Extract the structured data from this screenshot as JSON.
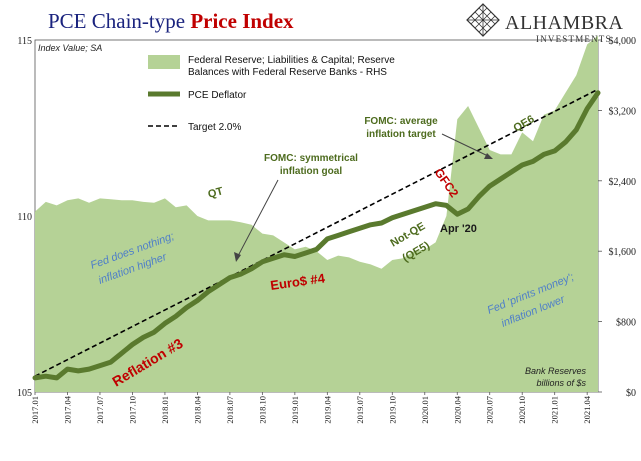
{
  "chart_data": {
    "type": "line",
    "title_part1": "PCE Chain-type ",
    "title_part2": "Price Index",
    "title_color_part1": "#1a237e",
    "title_color_part2": "#c00000",
    "left_axis_label": "Index Value; SA",
    "right_axis_label_line1": "Bank Reserves",
    "right_axis_label_line2": "billions of $s",
    "logo": {
      "name": "ALHAMBRA",
      "sub": "INVESTMENTS",
      "icon": "diamond-lattice-logo-icon"
    },
    "y_left": {
      "min": 105,
      "max": 115,
      "ticks": [
        105,
        110,
        115
      ]
    },
    "y_right": {
      "min": 0,
      "max": 4000,
      "ticks": [
        0,
        800,
        1600,
        2400,
        3200,
        4000
      ],
      "tick_labels": [
        "$0",
        "$800",
        "$1,600",
        "$2,400",
        "$3,200",
        "$4,000"
      ]
    },
    "x_ticks": [
      "2017.01",
      "2017.04",
      "2017.07",
      "2017.10",
      "2018.01",
      "2018.04",
      "2018.07",
      "2018.10",
      "2019.01",
      "2019.04",
      "2019.07",
      "2019.10",
      "2020.01",
      "2020.04",
      "2020.07",
      "2020.10",
      "2021.01",
      "2021.04"
    ],
    "legend": [
      {
        "label_line1": "Federal Reserve; Liabilities & Capital; Reserve",
        "label_line2": "Balances with Federal Reserve Banks - RHS",
        "kind": "area",
        "color": "#b5d296"
      },
      {
        "label_line1": "PCE Deflator",
        "label_line2": "",
        "kind": "line",
        "color": "#5a7a2e"
      },
      {
        "label_line1": "Target 2.0%",
        "label_line2": "",
        "kind": "dash",
        "color": "#000000"
      }
    ],
    "series": [
      {
        "name": "Federal Reserve; Liabilities & Capital; Reserve Balances with Federal Reserve Banks - RHS",
        "axis": "right",
        "color": "#b5d296",
        "x": [
          "2017.01",
          "2017.02",
          "2017.03",
          "2017.04",
          "2017.05",
          "2017.06",
          "2017.07",
          "2017.08",
          "2017.09",
          "2017.10",
          "2017.11",
          "2017.12",
          "2018.01",
          "2018.02",
          "2018.03",
          "2018.04",
          "2018.05",
          "2018.06",
          "2018.07",
          "2018.08",
          "2018.09",
          "2018.10",
          "2018.11",
          "2018.12",
          "2019.01",
          "2019.02",
          "2019.03",
          "2019.04",
          "2019.05",
          "2019.06",
          "2019.07",
          "2019.08",
          "2019.09",
          "2019.10",
          "2019.11",
          "2019.12",
          "2020.01",
          "2020.02",
          "2020.03",
          "2020.04",
          "2020.05",
          "2020.06",
          "2020.07",
          "2020.08",
          "2020.09",
          "2020.10",
          "2020.11",
          "2020.12",
          "2021.01",
          "2021.02",
          "2021.03",
          "2021.04",
          "2021.05"
        ],
        "values": [
          2050,
          2160,
          2120,
          2180,
          2200,
          2150,
          2200,
          2190,
          2180,
          2180,
          2160,
          2150,
          2200,
          2100,
          2120,
          2000,
          1950,
          1950,
          1950,
          1930,
          1900,
          1800,
          1780,
          1700,
          1620,
          1650,
          1600,
          1500,
          1550,
          1530,
          1480,
          1450,
          1400,
          1500,
          1520,
          1600,
          1620,
          1700,
          2000,
          3100,
          3250,
          3000,
          2750,
          2700,
          2700,
          2950,
          2850,
          3150,
          3200,
          3400,
          3600,
          3950,
          4050
        ]
      },
      {
        "name": "PCE Deflator",
        "axis": "left",
        "color": "#5a7a2e",
        "x": [
          "2017.01",
          "2017.02",
          "2017.03",
          "2017.04",
          "2017.05",
          "2017.06",
          "2017.07",
          "2017.08",
          "2017.09",
          "2017.10",
          "2017.11",
          "2017.12",
          "2018.01",
          "2018.02",
          "2018.03",
          "2018.04",
          "2018.05",
          "2018.06",
          "2018.07",
          "2018.08",
          "2018.09",
          "2018.10",
          "2018.11",
          "2018.12",
          "2019.01",
          "2019.02",
          "2019.03",
          "2019.04",
          "2019.05",
          "2019.06",
          "2019.07",
          "2019.08",
          "2019.09",
          "2019.10",
          "2019.11",
          "2019.12",
          "2020.01",
          "2020.02",
          "2020.03",
          "2020.04",
          "2020.05",
          "2020.06",
          "2020.07",
          "2020.08",
          "2020.09",
          "2020.10",
          "2020.11",
          "2020.12",
          "2021.01",
          "2021.02",
          "2021.03",
          "2021.04",
          "2021.05"
        ],
        "values": [
          105.4,
          105.45,
          105.4,
          105.65,
          105.6,
          105.65,
          105.75,
          105.85,
          106.1,
          106.35,
          106.55,
          106.7,
          106.95,
          107.15,
          107.4,
          107.6,
          107.85,
          108.05,
          108.25,
          108.35,
          108.5,
          108.7,
          108.8,
          108.9,
          108.85,
          108.95,
          109.05,
          109.35,
          109.45,
          109.55,
          109.65,
          109.75,
          109.8,
          109.95,
          110.05,
          110.15,
          110.25,
          110.35,
          110.3,
          110.05,
          110.2,
          110.55,
          110.85,
          111.05,
          111.25,
          111.45,
          111.55,
          111.75,
          111.85,
          112.1,
          112.45,
          113.05,
          113.5
        ]
      },
      {
        "name": "Target 2.0%",
        "axis": "left",
        "color": "#000000",
        "x": [
          "2017.01",
          "2021.05"
        ],
        "values": [
          105.45,
          113.6
        ]
      }
    ],
    "annotations": [
      {
        "text": "Reflation #3",
        "color": "#c00000",
        "style": "bold"
      },
      {
        "text": "Euro$ #4",
        "color": "#c00000",
        "style": "bold"
      },
      {
        "text": "GFC2",
        "color": "#c00000",
        "style": "bold"
      },
      {
        "text": "QT",
        "color": "#4d6b1e",
        "style": "bold"
      },
      {
        "text": "QE6",
        "color": "#4d6b1e",
        "style": "bold"
      },
      {
        "text": "Not-QE",
        "color": "#4d6b1e",
        "style": "bold"
      },
      {
        "text": "(QE5)",
        "color": "#4d6b1e",
        "style": "bold"
      },
      {
        "text": "Apr '20",
        "color": "#1a1a1a",
        "style": "bold"
      },
      {
        "text_line1": "FOMC: symmetrical",
        "text_line2": "inflation goal",
        "color": "#4d6b1e",
        "style": "bold"
      },
      {
        "text_line1": "FOMC: average",
        "text_line2": "inflation target",
        "color": "#4d6b1e",
        "style": "bold"
      },
      {
        "text_line1": "Fed does nothing;",
        "text_line2": "inflation higher",
        "color": "#4f7fc8",
        "style": "italic"
      },
      {
        "text_line1": "Fed 'prints money';",
        "text_line2": "inflation lower",
        "color": "#4f7fc8",
        "style": "italic"
      }
    ],
    "grid": false
  }
}
